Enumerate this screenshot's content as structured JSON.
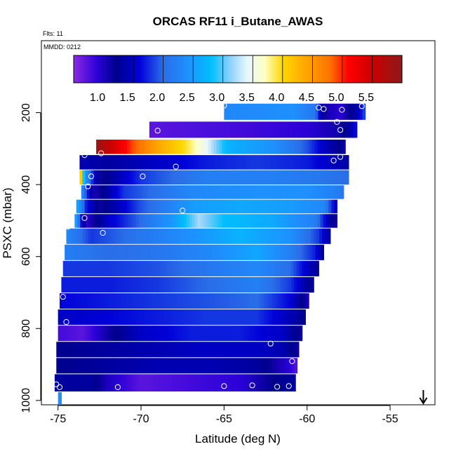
{
  "chart_data": {
    "type": "heatmap",
    "title": "ORCAS RF11 i_Butane_AWAS",
    "annotations": {
      "flights": "Flts: 11",
      "date": "MMDD: 0212"
    },
    "xlabel": "Latitude (deg N)",
    "ylabel": "PSXC (mbar)",
    "xlim": [
      -76.0,
      -52.3
    ],
    "ylim": [
      1012,
      0
    ],
    "y_scale": "linear, reversed (pressure decreasing upward)",
    "x_ticks": [
      -75,
      -70,
      -65,
      -60,
      -55
    ],
    "x_tick_labels": [
      "-75",
      "-70",
      "-65",
      "-60",
      "-55"
    ],
    "y_ticks": [
      200,
      400,
      600,
      800,
      1000
    ],
    "y_tick_labels": [
      "200",
      "400",
      "600",
      "800",
      "1000"
    ],
    "colorbar": {
      "range": [
        0.6,
        6.1
      ],
      "ticks": [
        1.0,
        1.5,
        2.0,
        2.5,
        3.0,
        3.5,
        4.0,
        4.5,
        5.0,
        5.5
      ],
      "tick_labels": [
        "1.0",
        "1.5",
        "2.0",
        "2.5",
        "3.0",
        "3.5",
        "4.0",
        "4.5",
        "5.0",
        "5.5"
      ],
      "stops": [
        {
          "v": 0.6,
          "color": "#8a2be2"
        },
        {
          "v": 1.0,
          "color": "#2a00d8"
        },
        {
          "v": 1.3,
          "color": "#00008c"
        },
        {
          "v": 1.7,
          "color": "#0000d8"
        },
        {
          "v": 2.1,
          "color": "#2a6ee8"
        },
        {
          "v": 2.5,
          "color": "#1e90ff"
        },
        {
          "v": 2.9,
          "color": "#00bfff"
        },
        {
          "v": 3.2,
          "color": "#87cefa"
        },
        {
          "v": 3.5,
          "color": "#e6f6ff"
        },
        {
          "v": 3.8,
          "color": "#ffffc0"
        },
        {
          "v": 4.1,
          "color": "#ffd700"
        },
        {
          "v": 4.5,
          "color": "#ffa500"
        },
        {
          "v": 4.9,
          "color": "#ff7000"
        },
        {
          "v": 5.2,
          "color": "#ff0000"
        },
        {
          "v": 5.6,
          "color": "#cd0000"
        },
        {
          "v": 6.1,
          "color": "#8b1a1a"
        }
      ]
    },
    "grid": false,
    "legend": "colorbar top, inside plot",
    "arrow_marker": {
      "lat": -53.0,
      "direction": "down"
    },
    "rows": [
      {
        "p_top": 175,
        "p_bot": 220,
        "lat_min": -65.0,
        "lat_max": -56.5,
        "profile": [
          [
            -65.0,
            2.4
          ],
          [
            -60.8,
            2.5
          ],
          [
            -59.5,
            2.2
          ],
          [
            -59.0,
            1.2
          ],
          [
            -58.0,
            1.0
          ],
          [
            -57.0,
            1.5
          ],
          [
            -56.5,
            2.0
          ]
        ]
      },
      {
        "p_top": 225,
        "p_bot": 270,
        "lat_min": -69.5,
        "lat_max": -57.0,
        "profile": [
          [
            -69.5,
            0.8
          ],
          [
            -64.0,
            0.9
          ],
          [
            -60.0,
            1.0
          ],
          [
            -58.0,
            1.2
          ],
          [
            -57.5,
            1.4
          ],
          [
            -57.0,
            1.8
          ]
        ]
      },
      {
        "p_top": 275,
        "p_bot": 315,
        "lat_min": -72.7,
        "lat_max": -57.7,
        "profile": [
          [
            -72.7,
            6.0
          ],
          [
            -70.5,
            5.0
          ],
          [
            -69.0,
            4.5
          ],
          [
            -67.2,
            4.0
          ],
          [
            -66.0,
            3.5
          ],
          [
            -64.8,
            2.8
          ],
          [
            -62.0,
            2.5
          ],
          [
            -60.0,
            2.0
          ],
          [
            -59.0,
            1.6
          ],
          [
            -58.0,
            1.3
          ],
          [
            -57.7,
            1.2
          ]
        ]
      },
      {
        "p_top": 318,
        "p_bot": 358,
        "lat_min": -73.7,
        "lat_max": -57.5,
        "profile": [
          [
            -73.7,
            1.5
          ],
          [
            -72.0,
            1.4
          ],
          [
            -69.0,
            1.6
          ],
          [
            -66.0,
            1.8
          ],
          [
            -63.0,
            1.9
          ],
          [
            -60.0,
            1.8
          ],
          [
            -58.0,
            1.5
          ],
          [
            -57.5,
            1.4
          ]
        ]
      },
      {
        "p_top": 360,
        "p_bot": 400,
        "lat_min": -73.7,
        "lat_max": -57.5,
        "profile": [
          [
            -73.7,
            4.8
          ],
          [
            -73.4,
            2.6
          ],
          [
            -72.5,
            1.2
          ],
          [
            -70.0,
            1.9
          ],
          [
            -66.0,
            2.3
          ],
          [
            -62.0,
            2.3
          ],
          [
            -59.0,
            2.2
          ],
          [
            -57.5,
            2.1
          ]
        ]
      },
      {
        "p_top": 402,
        "p_bot": 440,
        "lat_min": -73.6,
        "lat_max": -57.8,
        "profile": [
          [
            -73.6,
            2.5
          ],
          [
            -72.8,
            1.1
          ],
          [
            -71.0,
            1.9
          ],
          [
            -67.0,
            2.4
          ],
          [
            -63.0,
            2.5
          ],
          [
            -60.0,
            2.5
          ],
          [
            -58.3,
            2.3
          ],
          [
            -57.8,
            2.2
          ]
        ]
      },
      {
        "p_top": 442,
        "p_bot": 480,
        "lat_min": -73.9,
        "lat_max": -58.2,
        "profile": [
          [
            -73.9,
            2.8
          ],
          [
            -73.3,
            1.8
          ],
          [
            -72.5,
            1.2
          ],
          [
            -70.0,
            2.0
          ],
          [
            -67.0,
            2.6
          ],
          [
            -64.0,
            2.7
          ],
          [
            -61.0,
            2.6
          ],
          [
            -59.0,
            2.4
          ],
          [
            -58.2,
            1.5
          ]
        ]
      },
      {
        "p_top": 482,
        "p_bot": 520,
        "lat_min": -74.0,
        "lat_max": -58.2,
        "profile": [
          [
            -74.0,
            2.8
          ],
          [
            -73.3,
            1.0
          ],
          [
            -72.0,
            1.6
          ],
          [
            -70.0,
            2.1
          ],
          [
            -68.0,
            2.6
          ],
          [
            -66.5,
            3.3
          ],
          [
            -65.0,
            2.9
          ],
          [
            -62.0,
            2.7
          ],
          [
            -59.5,
            2.3
          ],
          [
            -58.5,
            1.3
          ],
          [
            -58.2,
            1.2
          ]
        ]
      },
      {
        "p_top": 522,
        "p_bot": 565,
        "lat_min": -74.5,
        "lat_max": -58.6,
        "profile": [
          [
            -74.5,
            2.4
          ],
          [
            -73.0,
            1.9
          ],
          [
            -70.0,
            2.2
          ],
          [
            -67.0,
            2.5
          ],
          [
            -64.0,
            2.8
          ],
          [
            -61.0,
            2.5
          ],
          [
            -59.3,
            1.9
          ],
          [
            -58.6,
            1.3
          ]
        ]
      },
      {
        "p_top": 567,
        "p_bot": 610,
        "lat_min": -74.6,
        "lat_max": -59.0,
        "profile": [
          [
            -74.6,
            2.3
          ],
          [
            -72.0,
            2.1
          ],
          [
            -69.0,
            2.2
          ],
          [
            -66.0,
            2.4
          ],
          [
            -63.0,
            2.7
          ],
          [
            -61.0,
            2.3
          ],
          [
            -59.5,
            1.8
          ],
          [
            -59.0,
            1.3
          ]
        ]
      },
      {
        "p_top": 612,
        "p_bot": 655,
        "lat_min": -74.7,
        "lat_max": -59.3,
        "profile": [
          [
            -74.7,
            1.9
          ],
          [
            -72.0,
            1.9
          ],
          [
            -69.0,
            2.0
          ],
          [
            -66.0,
            2.2
          ],
          [
            -63.0,
            2.4
          ],
          [
            -61.0,
            2.1
          ],
          [
            -60.0,
            1.6
          ],
          [
            -59.3,
            1.3
          ]
        ]
      },
      {
        "p_top": 657,
        "p_bot": 700,
        "lat_min": -74.8,
        "lat_max": -59.6,
        "profile": [
          [
            -74.8,
            1.8
          ],
          [
            -72.0,
            1.8
          ],
          [
            -69.0,
            1.9
          ],
          [
            -66.0,
            2.1
          ],
          [
            -63.0,
            2.3
          ],
          [
            -61.0,
            1.9
          ],
          [
            -60.0,
            1.4
          ],
          [
            -59.6,
            1.2
          ]
        ]
      },
      {
        "p_top": 702,
        "p_bot": 745,
        "lat_min": -74.9,
        "lat_max": -59.9,
        "profile": [
          [
            -74.9,
            1.7
          ],
          [
            -72.0,
            1.8
          ],
          [
            -69.0,
            1.9
          ],
          [
            -66.0,
            2.0
          ],
          [
            -63.0,
            2.1
          ],
          [
            -61.0,
            1.7
          ],
          [
            -60.3,
            1.3
          ],
          [
            -59.9,
            1.1
          ]
        ]
      },
      {
        "p_top": 747,
        "p_bot": 790,
        "lat_min": -75.0,
        "lat_max": -60.1,
        "profile": [
          [
            -75.0,
            1.6
          ],
          [
            -72.0,
            1.7
          ],
          [
            -69.0,
            1.8
          ],
          [
            -66.0,
            1.9
          ],
          [
            -63.0,
            1.9
          ],
          [
            -61.0,
            1.5
          ],
          [
            -60.1,
            1.3
          ]
        ]
      },
      {
        "p_top": 792,
        "p_bot": 835,
        "lat_min": -75.0,
        "lat_max": -60.3,
        "profile": [
          [
            -75.0,
            0.9
          ],
          [
            -73.5,
            0.8
          ],
          [
            -72.0,
            1.2
          ],
          [
            -70.0,
            1.6
          ],
          [
            -67.0,
            1.8
          ],
          [
            -64.0,
            1.8
          ],
          [
            -61.5,
            1.6
          ],
          [
            -60.3,
            1.2
          ]
        ]
      },
      {
        "p_top": 837,
        "p_bot": 880,
        "lat_min": -75.1,
        "lat_max": -60.5,
        "profile": [
          [
            -75.1,
            1.3
          ],
          [
            -72.0,
            1.4
          ],
          [
            -69.0,
            1.5
          ],
          [
            -66.0,
            1.6
          ],
          [
            -63.0,
            1.6
          ],
          [
            -61.5,
            1.5
          ],
          [
            -60.5,
            1.2
          ]
        ]
      },
      {
        "p_top": 882,
        "p_bot": 925,
        "lat_min": -75.1,
        "lat_max": -60.6,
        "profile": [
          [
            -75.1,
            1.3
          ],
          [
            -72.0,
            1.4
          ],
          [
            -69.0,
            1.5
          ],
          [
            -66.0,
            1.5
          ],
          [
            -63.0,
            1.4
          ],
          [
            -61.0,
            1.0
          ],
          [
            -60.6,
            0.8
          ]
        ]
      },
      {
        "p_top": 927,
        "p_bot": 975,
        "lat_min": -75.2,
        "lat_max": -60.7,
        "profile": [
          [
            -75.2,
            1.4
          ],
          [
            -73.0,
            1.4
          ],
          [
            -72.0,
            1.1
          ],
          [
            -70.0,
            0.8
          ],
          [
            -67.0,
            0.9
          ],
          [
            -64.0,
            1.0
          ],
          [
            -62.0,
            1.3
          ],
          [
            -60.7,
            1.4
          ]
        ]
      },
      {
        "p_top": 977,
        "p_bot": 1012,
        "lat_min": -75.0,
        "lat_max": -74.8,
        "profile": [
          [
            -75.0,
            2.5
          ],
          [
            -74.8,
            2.5
          ]
        ]
      }
    ],
    "sample_points": [
      {
        "lat": -65.0,
        "p": 180
      },
      {
        "lat": -59.3,
        "p": 186
      },
      {
        "lat": -59.0,
        "p": 190
      },
      {
        "lat": -57.9,
        "p": 192
      },
      {
        "lat": -56.7,
        "p": 182
      },
      {
        "lat": -69.0,
        "p": 250
      },
      {
        "lat": -58.0,
        "p": 248
      },
      {
        "lat": -58.2,
        "p": 226
      },
      {
        "lat": -72.4,
        "p": 313
      },
      {
        "lat": -73.4,
        "p": 318
      },
      {
        "lat": -67.9,
        "p": 350
      },
      {
        "lat": -58.4,
        "p": 333
      },
      {
        "lat": -58.0,
        "p": 323
      },
      {
        "lat": -69.9,
        "p": 377
      },
      {
        "lat": -73.0,
        "p": 377
      },
      {
        "lat": -73.2,
        "p": 405
      },
      {
        "lat": -67.5,
        "p": 472
      },
      {
        "lat": -73.4,
        "p": 493
      },
      {
        "lat": -74.4,
        "p": 517
      },
      {
        "lat": -72.3,
        "p": 534
      },
      {
        "lat": -74.7,
        "p": 712
      },
      {
        "lat": -74.5,
        "p": 782
      },
      {
        "lat": -62.2,
        "p": 842
      },
      {
        "lat": -60.9,
        "p": 891
      },
      {
        "lat": -75.1,
        "p": 955
      },
      {
        "lat": -74.9,
        "p": 963
      },
      {
        "lat": -71.4,
        "p": 963
      },
      {
        "lat": -65.0,
        "p": 960
      },
      {
        "lat": -63.3,
        "p": 958
      },
      {
        "lat": -61.8,
        "p": 962
      },
      {
        "lat": -61.1,
        "p": 960
      }
    ]
  }
}
